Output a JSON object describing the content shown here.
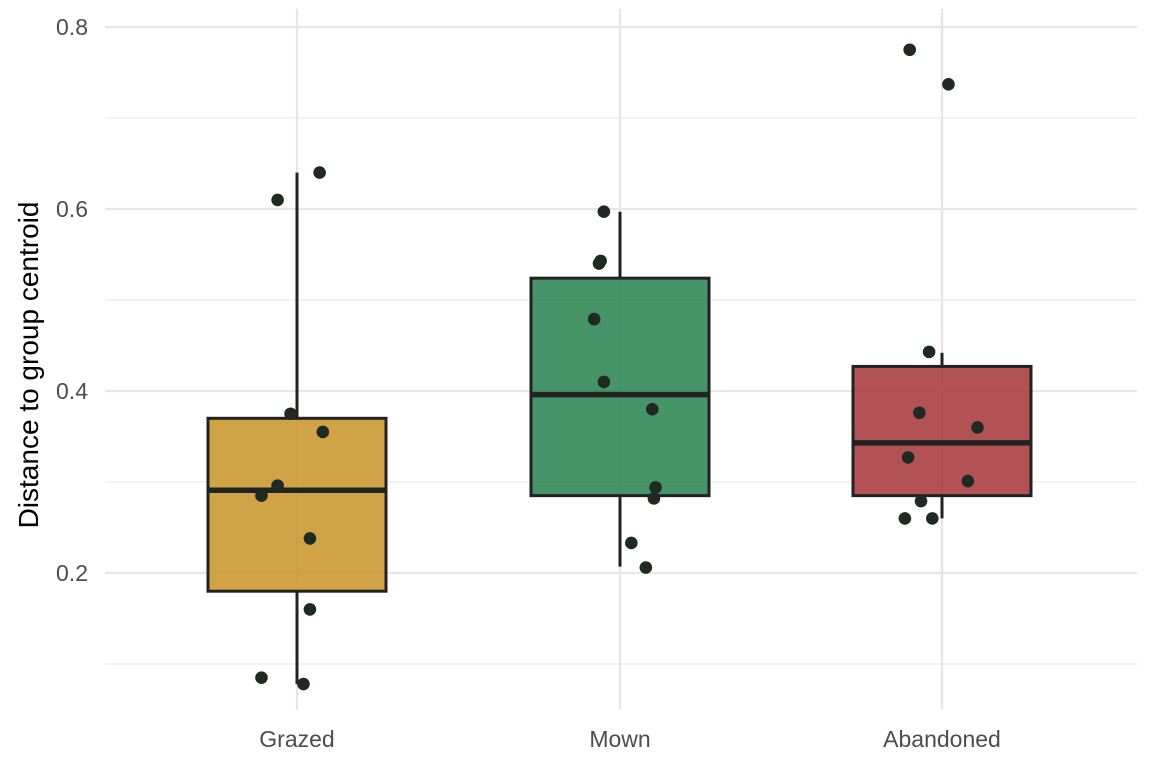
{
  "chart_data": {
    "type": "boxplot",
    "title": "",
    "xlabel": "",
    "ylabel": "Distance to group centroid",
    "ylim": [
      0.05,
      0.82
    ],
    "yticks": [
      0.2,
      0.4,
      0.6,
      0.8
    ],
    "ytick_labels": [
      "0.2",
      "0.4",
      "0.6",
      "0.8"
    ],
    "grid": true,
    "legend": "none",
    "categories": [
      "Grazed",
      "Mown",
      "Abandoned"
    ],
    "groups": [
      {
        "category": "Grazed",
        "color": "#c9962e",
        "whisker_low": 0.078,
        "q1": 0.18,
        "median": 0.291,
        "q3": 0.37,
        "whisker_high": 0.64,
        "points": [
          {
            "x_offset": -0.06,
            "y": 0.61
          },
          {
            "x_offset": 0.07,
            "y": 0.64
          },
          {
            "x_offset": -0.02,
            "y": 0.375
          },
          {
            "x_offset": 0.08,
            "y": 0.355
          },
          {
            "x_offset": -0.06,
            "y": 0.296
          },
          {
            "x_offset": -0.11,
            "y": 0.285
          },
          {
            "x_offset": 0.04,
            "y": 0.238
          },
          {
            "x_offset": 0.04,
            "y": 0.16
          },
          {
            "x_offset": -0.11,
            "y": 0.085
          },
          {
            "x_offset": 0.02,
            "y": 0.078
          }
        ]
      },
      {
        "category": "Mown",
        "color": "#2e8554",
        "whisker_low": 0.207,
        "q1": 0.285,
        "median": 0.396,
        "q3": 0.524,
        "whisker_high": 0.597,
        "points": [
          {
            "x_offset": -0.05,
            "y": 0.597
          },
          {
            "x_offset": -0.06,
            "y": 0.543
          },
          {
            "x_offset": -0.065,
            "y": 0.54
          },
          {
            "x_offset": -0.08,
            "y": 0.479
          },
          {
            "x_offset": -0.05,
            "y": 0.41
          },
          {
            "x_offset": 0.1,
            "y": 0.38
          },
          {
            "x_offset": 0.11,
            "y": 0.294
          },
          {
            "x_offset": 0.105,
            "y": 0.282
          },
          {
            "x_offset": 0.035,
            "y": 0.233
          },
          {
            "x_offset": 0.08,
            "y": 0.206
          }
        ]
      },
      {
        "category": "Abandoned",
        "color": "#a83a3e",
        "whisker_low": 0.26,
        "q1": 0.285,
        "median": 0.343,
        "q3": 0.427,
        "whisker_high": 0.442,
        "points": [
          {
            "x_offset": -0.1,
            "y": 0.775
          },
          {
            "x_offset": 0.02,
            "y": 0.737
          },
          {
            "x_offset": -0.04,
            "y": 0.443
          },
          {
            "x_offset": -0.07,
            "y": 0.376
          },
          {
            "x_offset": 0.11,
            "y": 0.36
          },
          {
            "x_offset": -0.105,
            "y": 0.327
          },
          {
            "x_offset": 0.08,
            "y": 0.301
          },
          {
            "x_offset": -0.065,
            "y": 0.279
          },
          {
            "x_offset": -0.115,
            "y": 0.26
          },
          {
            "x_offset": -0.03,
            "y": 0.26
          }
        ]
      }
    ]
  }
}
